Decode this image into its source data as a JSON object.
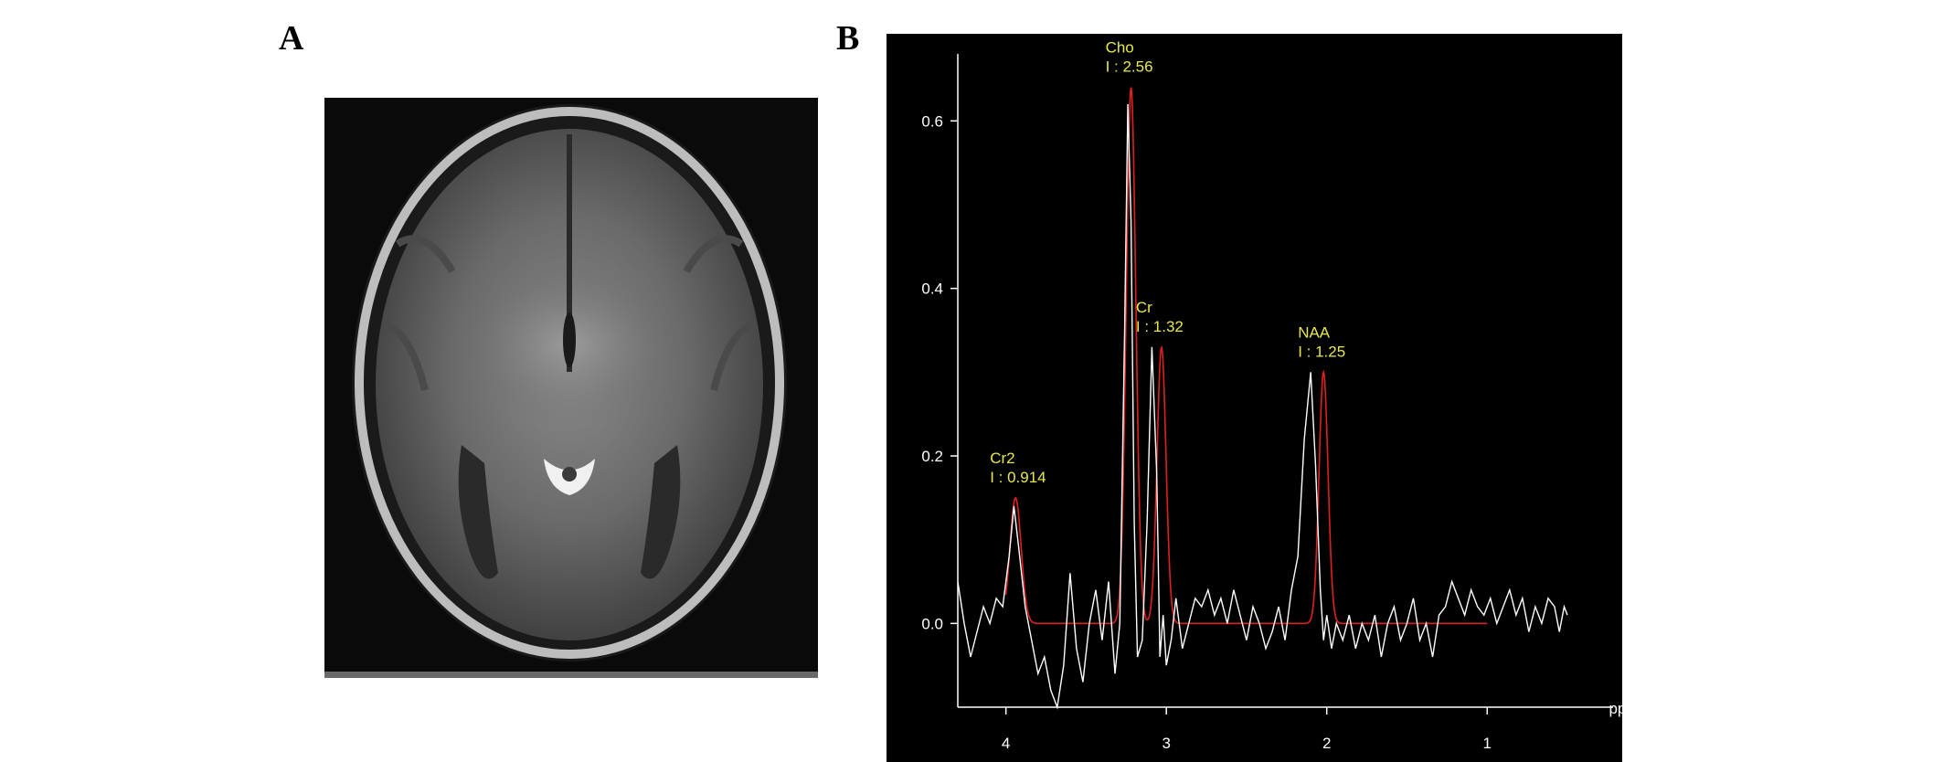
{
  "panels": {
    "a_label": "A",
    "b_label": "B"
  },
  "chart_data": {
    "type": "line",
    "xlabel": "ppm",
    "ylabel": "",
    "xlim": [
      4.3,
      0.5
    ],
    "ylim": [
      -0.1,
      0.68
    ],
    "x_ticks": [
      4,
      3,
      2,
      1
    ],
    "x_tick_labels": [
      "4",
      "3",
      "2",
      "1"
    ],
    "y_ticks": [
      0.0,
      0.2,
      0.4,
      0.6
    ],
    "y_tick_labels": [
      "0.0",
      "0.2",
      "0.4",
      "0.6"
    ],
    "series": [
      {
        "style": "raw spectrum",
        "color": "#ffffff",
        "x": [
          4.3,
          4.26,
          4.22,
          4.18,
          4.14,
          4.1,
          4.06,
          4.02,
          3.98,
          3.95,
          3.92,
          3.88,
          3.84,
          3.8,
          3.76,
          3.72,
          3.68,
          3.64,
          3.6,
          3.56,
          3.52,
          3.48,
          3.44,
          3.4,
          3.36,
          3.32,
          3.29,
          3.26,
          3.24,
          3.22,
          3.2,
          3.18,
          3.15,
          3.12,
          3.09,
          3.06,
          3.04,
          3.02,
          3.0,
          2.97,
          2.94,
          2.9,
          2.86,
          2.82,
          2.78,
          2.74,
          2.7,
          2.66,
          2.62,
          2.58,
          2.54,
          2.5,
          2.46,
          2.42,
          2.38,
          2.34,
          2.3,
          2.26,
          2.22,
          2.18,
          2.14,
          2.1,
          2.07,
          2.04,
          2.02,
          2.0,
          1.97,
          1.94,
          1.9,
          1.86,
          1.82,
          1.78,
          1.74,
          1.7,
          1.66,
          1.62,
          1.58,
          1.54,
          1.5,
          1.46,
          1.42,
          1.38,
          1.34,
          1.3,
          1.26,
          1.22,
          1.18,
          1.14,
          1.1,
          1.06,
          1.02,
          0.98,
          0.94,
          0.9,
          0.86,
          0.82,
          0.78,
          0.74,
          0.7,
          0.66,
          0.62,
          0.58,
          0.55,
          0.52,
          0.5
        ],
        "y": [
          0.05,
          0.0,
          -0.04,
          -0.01,
          0.02,
          0.0,
          0.03,
          0.02,
          0.08,
          0.14,
          0.09,
          0.02,
          -0.02,
          -0.06,
          -0.04,
          -0.08,
          -0.1,
          -0.05,
          0.06,
          -0.03,
          -0.07,
          0.0,
          0.04,
          -0.02,
          0.05,
          -0.06,
          0.0,
          0.35,
          0.62,
          0.48,
          0.12,
          -0.04,
          -0.02,
          0.12,
          0.33,
          0.18,
          -0.04,
          0.01,
          -0.05,
          -0.02,
          0.03,
          -0.03,
          0.0,
          0.03,
          0.02,
          0.04,
          0.01,
          0.03,
          0.0,
          0.04,
          0.01,
          -0.02,
          0.02,
          0.0,
          -0.03,
          -0.01,
          0.02,
          -0.02,
          0.04,
          0.08,
          0.22,
          0.3,
          0.19,
          0.04,
          -0.02,
          0.01,
          -0.03,
          0.0,
          -0.02,
          0.01,
          -0.03,
          0.0,
          -0.02,
          0.01,
          -0.04,
          0.0,
          0.02,
          -0.02,
          0.0,
          0.03,
          -0.02,
          0.0,
          -0.04,
          0.01,
          0.02,
          0.05,
          0.03,
          0.01,
          0.04,
          0.02,
          0.01,
          0.03,
          0.0,
          0.02,
          0.04,
          0.01,
          0.03,
          -0.01,
          0.02,
          0.0,
          0.03,
          0.02,
          -0.01,
          0.02,
          0.01
        ]
      },
      {
        "style": "fitted curve",
        "color": "#e02020",
        "fit_range": [
          4.0,
          1.0
        ],
        "peaks": [
          {
            "center": 3.94,
            "height": 0.15,
            "width": 0.035
          },
          {
            "center": 3.22,
            "height": 0.64,
            "width": 0.03
          },
          {
            "center": 3.03,
            "height": 0.33,
            "width": 0.028
          },
          {
            "center": 2.02,
            "height": 0.3,
            "width": 0.028
          }
        ]
      }
    ],
    "annotations": [
      {
        "name": "Cr2",
        "text": "I : 0.914",
        "x": 3.94,
        "y": 0.15
      },
      {
        "name": "Cho",
        "text": "I : 2.56",
        "x": 3.22,
        "y": 0.64
      },
      {
        "name": "Cr",
        "text": "I : 1.32",
        "x": 3.03,
        "y": 0.33
      },
      {
        "name": "NAA",
        "text": "I : 1.25",
        "x": 2.02,
        "y": 0.3
      }
    ],
    "background": "#000000",
    "axis_color": "#ffffff"
  }
}
